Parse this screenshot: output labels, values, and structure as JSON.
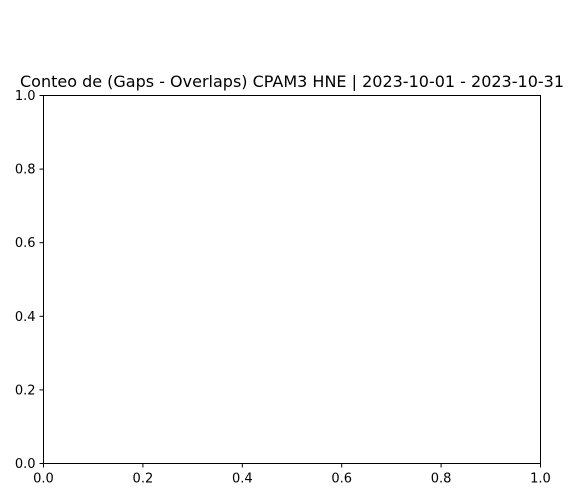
{
  "chart_data": {
    "type": "bar",
    "title": "Conteo de (Gaps - Overlaps) CPAM3 HNE | 2023-10-01 - 2023-10-31",
    "xlabel": "",
    "ylabel": "",
    "categories": [],
    "values": [],
    "xlim": [
      0,
      1
    ],
    "ylim": [
      0,
      1
    ],
    "x_ticks": [
      "0.0",
      "0.2",
      "0.4",
      "0.6",
      "0.8",
      "1.0"
    ],
    "y_ticks": [
      "0.0",
      "0.2",
      "0.4",
      "0.6",
      "0.8",
      "1.0"
    ],
    "grid": false,
    "legend": "none"
  }
}
